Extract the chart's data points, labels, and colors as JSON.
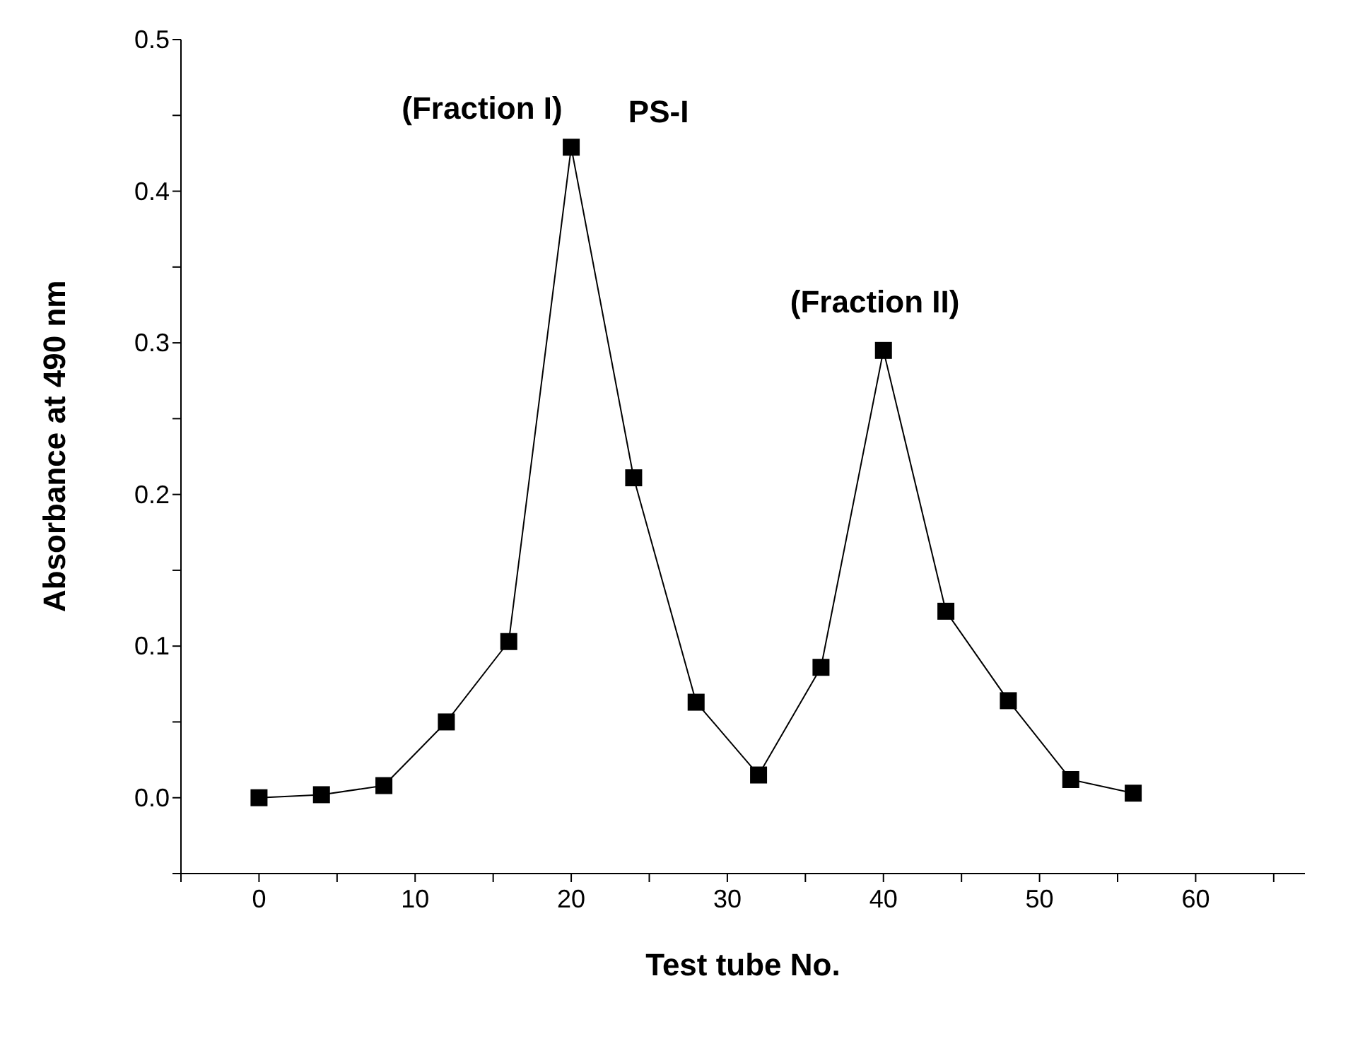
{
  "chart_data": {
    "type": "line",
    "xlabel": "Test tube No.",
    "ylabel": "Absorbance at 490 nm",
    "x": [
      0,
      4,
      8,
      12,
      16,
      20,
      24,
      28,
      32,
      36,
      40,
      44,
      48,
      52,
      56
    ],
    "series": [
      {
        "color": "#000000",
        "values": [
          0.0,
          0.002,
          0.008,
          0.05,
          0.103,
          0.429,
          0.211,
          0.063,
          0.015,
          0.086,
          0.295,
          0.123,
          0.064,
          0.012,
          0.003
        ]
      }
    ],
    "marker": "square",
    "line_style": "solid",
    "grid": false,
    "legend": false,
    "xlim": [
      -5,
      67
    ],
    "xticks": [
      {
        "value": -5,
        "label": null
      },
      0,
      {
        "value": 5,
        "label": null
      },
      10,
      {
        "value": 15,
        "label": null
      },
      20,
      {
        "value": 25,
        "label": null
      },
      30,
      {
        "value": 35,
        "label": null
      },
      40,
      {
        "value": 45,
        "label": null
      },
      50,
      {
        "value": 55,
        "label": null
      },
      60,
      {
        "value": 65,
        "label": null
      }
    ],
    "ylim": [
      -0.05,
      0.5
    ],
    "yticks": [
      {
        "value": -0.05,
        "label": null
      },
      {
        "value": 0,
        "label": "0.0"
      },
      {
        "value": 0.05,
        "label": null
      },
      {
        "value": 0.1,
        "label": "0.1"
      },
      {
        "value": 0.15,
        "label": null
      },
      {
        "value": 0.2,
        "label": "0.2"
      },
      {
        "value": 0.25,
        "label": null
      },
      {
        "value": 0.3,
        "label": "0.3"
      },
      {
        "value": 0.35,
        "label": null
      },
      {
        "value": 0.4,
        "label": "0.4"
      },
      {
        "value": 0.45,
        "label": null
      },
      {
        "value": 0.5,
        "label": "0.5"
      }
    ],
    "annotations": [
      "(Fraction I)",
      "PS-I",
      "(Fraction II)"
    ]
  }
}
